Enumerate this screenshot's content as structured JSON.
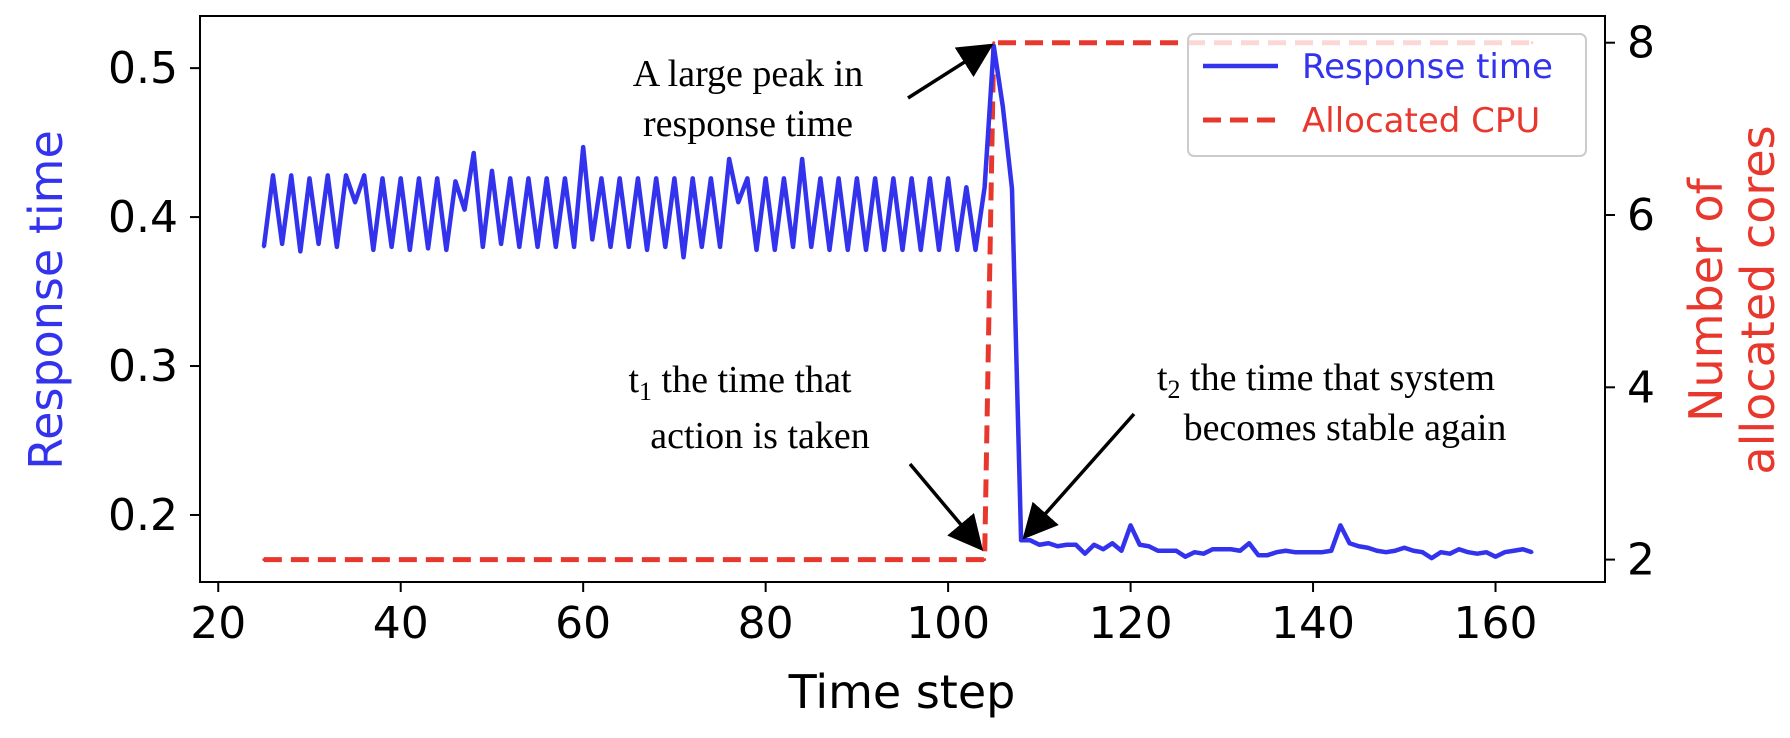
{
  "chart_data": {
    "type": "line",
    "xlabel": "Time step",
    "ylabel_left": "Response time",
    "ylabel_right_line1": "Number of",
    "ylabel_right_line2": "allocated cores",
    "xlim": [
      18,
      172
    ],
    "ylim_left": [
      0.155,
      0.535
    ],
    "ylim_right": [
      1.74,
      8.31
    ],
    "x_ticks": [
      20,
      40,
      60,
      80,
      100,
      120,
      140,
      160
    ],
    "y_ticks_left": [
      0.2,
      0.3,
      0.4,
      0.5
    ],
    "y_ticks_right": [
      2,
      4,
      6,
      8
    ],
    "grid": false,
    "legend_position": "top-right",
    "colors": {
      "response_time": "#3333ee",
      "allocated_cpu": "#e8382e"
    },
    "series": [
      {
        "name": "Response time",
        "axis": "left",
        "style": "solid",
        "x": [
          25,
          26,
          27,
          28,
          29,
          30,
          31,
          32,
          33,
          34,
          35,
          36,
          37,
          38,
          39,
          40,
          41,
          42,
          43,
          44,
          45,
          46,
          47,
          48,
          49,
          50,
          51,
          52,
          53,
          54,
          55,
          56,
          57,
          58,
          59,
          60,
          61,
          62,
          63,
          64,
          65,
          66,
          67,
          68,
          69,
          70,
          71,
          72,
          73,
          74,
          75,
          76,
          77,
          78,
          79,
          80,
          81,
          82,
          83,
          84,
          85,
          86,
          87,
          88,
          89,
          90,
          91,
          92,
          93,
          94,
          95,
          96,
          97,
          98,
          99,
          100,
          101,
          102,
          103,
          104,
          105,
          106,
          107,
          108,
          109,
          110,
          111,
          112,
          113,
          114,
          115,
          116,
          117,
          118,
          119,
          120,
          121,
          122,
          123,
          124,
          125,
          126,
          127,
          128,
          129,
          130,
          131,
          132,
          133,
          134,
          135,
          136,
          137,
          138,
          139,
          140,
          141,
          142,
          143,
          144,
          145,
          146,
          147,
          148,
          149,
          150,
          151,
          152,
          153,
          154,
          155,
          156,
          157,
          158,
          159,
          160,
          161,
          162,
          163,
          164
        ],
        "values": [
          0.38,
          0.428,
          0.382,
          0.428,
          0.377,
          0.426,
          0.382,
          0.428,
          0.38,
          0.428,
          0.41,
          0.428,
          0.378,
          0.426,
          0.38,
          0.426,
          0.378,
          0.426,
          0.379,
          0.426,
          0.378,
          0.424,
          0.405,
          0.443,
          0.38,
          0.431,
          0.382,
          0.426,
          0.38,
          0.426,
          0.38,
          0.426,
          0.38,
          0.426,
          0.38,
          0.447,
          0.385,
          0.426,
          0.38,
          0.426,
          0.38,
          0.426,
          0.378,
          0.426,
          0.38,
          0.426,
          0.373,
          0.426,
          0.38,
          0.426,
          0.38,
          0.439,
          0.41,
          0.426,
          0.378,
          0.426,
          0.378,
          0.426,
          0.38,
          0.439,
          0.38,
          0.426,
          0.378,
          0.426,
          0.378,
          0.426,
          0.378,
          0.426,
          0.378,
          0.426,
          0.378,
          0.426,
          0.378,
          0.426,
          0.378,
          0.426,
          0.378,
          0.42,
          0.378,
          0.42,
          0.515,
          0.474,
          0.419,
          0.183,
          0.183,
          0.18,
          0.181,
          0.179,
          0.18,
          0.18,
          0.174,
          0.18,
          0.177,
          0.181,
          0.176,
          0.193,
          0.18,
          0.179,
          0.176,
          0.176,
          0.176,
          0.172,
          0.175,
          0.174,
          0.177,
          0.177,
          0.177,
          0.176,
          0.181,
          0.173,
          0.173,
          0.175,
          0.176,
          0.175,
          0.175,
          0.175,
          0.175,
          0.176,
          0.193,
          0.181,
          0.179,
          0.178,
          0.176,
          0.175,
          0.176,
          0.178,
          0.176,
          0.175,
          0.171,
          0.175,
          0.174,
          0.177,
          0.175,
          0.174,
          0.175,
          0.172,
          0.175,
          0.176,
          0.177,
          0.175
        ]
      },
      {
        "name": "Allocated CPU",
        "axis": "right",
        "style": "dashed",
        "x": [
          25,
          104,
          105,
          164
        ],
        "values": [
          2,
          2,
          8,
          8
        ]
      }
    ],
    "annotations": [
      {
        "line1": "A large peak in",
        "line2": "response time",
        "x": 105,
        "y": 0.518
      },
      {
        "line1": "the time that",
        "line2": "action is taken",
        "prefix": "t",
        "subscript": "1",
        "x": 104,
        "y": 0.17
      },
      {
        "line1": "the time that system",
        "line2": "becomes stable again",
        "prefix": "t",
        "subscript": "2",
        "x": 108,
        "y": 0.183
      }
    ]
  }
}
